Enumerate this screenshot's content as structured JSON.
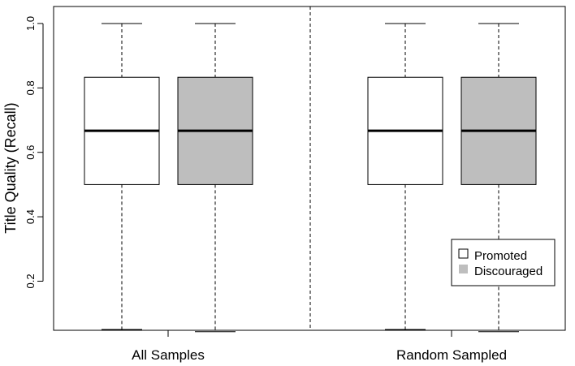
{
  "chart_data": {
    "type": "box",
    "ylabel": "Title Quality (Recall)",
    "ylim": [
      0.04,
      1.02
    ],
    "yticks": [
      0.2,
      0.4,
      0.6,
      0.8,
      1.0
    ],
    "ytick_labels": [
      "0.2",
      "0.4",
      "0.6",
      "0.8",
      "1.0"
    ],
    "categories": [
      "All Samples",
      "Random Sampled"
    ],
    "series": [
      {
        "name": "Promoted",
        "color": "#ffffff",
        "boxes": [
          {
            "min": 0.05,
            "q1": 0.5,
            "median": 0.667,
            "q3": 0.833,
            "max": 1.0
          },
          {
            "min": 0.05,
            "q1": 0.5,
            "median": 0.667,
            "q3": 0.833,
            "max": 1.0
          }
        ]
      },
      {
        "name": "Discouraged",
        "color": "#bebebe",
        "boxes": [
          {
            "min": 0.043,
            "q1": 0.5,
            "median": 0.667,
            "q3": 0.833,
            "max": 1.0
          },
          {
            "min": 0.043,
            "q1": 0.5,
            "median": 0.667,
            "q3": 0.833,
            "max": 1.0
          }
        ]
      }
    ],
    "separator_between_groups": true,
    "legend_position": "bottom-right",
    "grid": false
  }
}
